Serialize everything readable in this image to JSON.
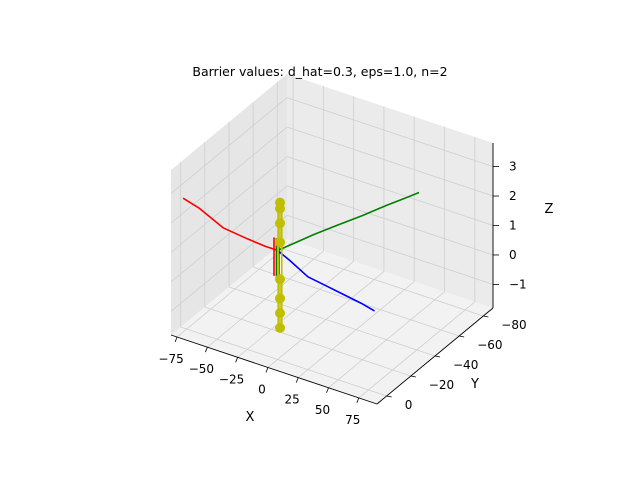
{
  "chart_data": {
    "type": "line3d",
    "title": "Barrier values: d_hat=0.3, eps=1.0, n=2",
    "xlabel": "X",
    "ylabel": "Y",
    "zlabel": "Z",
    "xlim": [
      -80,
      90
    ],
    "ylim": [
      -88,
      8
    ],
    "zlim": [
      -1.8,
      3.8
    ],
    "xticks": [
      -75,
      -50,
      -25,
      0,
      25,
      50,
      75
    ],
    "yticks": [
      0,
      -20,
      -40,
      -60,
      -80
    ],
    "zticks": [
      -1,
      0,
      1,
      2,
      3
    ],
    "grid": true,
    "series": [
      {
        "color": "#ff0000",
        "points": [
          [
            -78,
            0,
            2.6
          ],
          [
            -65,
            0,
            2.45
          ],
          [
            -45,
            0,
            2.05
          ],
          [
            -25,
            0,
            1.95
          ],
          [
            -10,
            0,
            1.9
          ],
          [
            -1,
            0,
            1.9
          ]
        ]
      },
      {
        "color": "#ff0000",
        "points": [
          [
            -3,
            0,
            1.0
          ],
          [
            -3,
            0,
            2.3
          ]
        ]
      },
      {
        "color": "#008000",
        "points": [
          [
            0,
            0,
            1.9
          ],
          [
            5,
            -10,
            1.9
          ],
          [
            10,
            -20,
            1.9
          ],
          [
            17,
            -32,
            1.9
          ],
          [
            25,
            -45,
            1.9
          ],
          [
            32,
            -58,
            1.9
          ],
          [
            38,
            -68,
            1.9
          ],
          [
            42,
            -75,
            1.9
          ]
        ]
      },
      {
        "color": "#008000",
        "points": [
          [
            -1,
            0,
            1.0
          ],
          [
            -1,
            0,
            2.3
          ]
        ]
      },
      {
        "color": "#0000ff",
        "points": [
          [
            0,
            0,
            1.9
          ],
          [
            10,
            0,
            1.7
          ],
          [
            25,
            0,
            1.35
          ],
          [
            40,
            0,
            1.25
          ],
          [
            55,
            0,
            1.15
          ],
          [
            70,
            0,
            1.05
          ],
          [
            80,
            0,
            0.95
          ]
        ]
      },
      {
        "color": "#0000ff",
        "points": [
          [
            1,
            0,
            1.0
          ],
          [
            1,
            0,
            2.3
          ]
        ]
      },
      {
        "color": "#bfbf00",
        "marker": "o",
        "points": [
          [
            2,
            0,
            3.55
          ],
          [
            2,
            0,
            3.35
          ],
          [
            2,
            0,
            2.85
          ],
          [
            2,
            0,
            2.2
          ]
        ]
      },
      {
        "color": "#bfbf00",
        "marker": "o",
        "points": [
          [
            2,
            0,
            0.95
          ],
          [
            2,
            0,
            0.3
          ],
          [
            2,
            0,
            -0.2
          ],
          [
            2,
            0,
            -0.7
          ]
        ]
      },
      {
        "color": "#bfbf00",
        "points": [
          [
            0.5,
            0,
            3.4
          ],
          [
            0.5,
            0,
            -0.6
          ]
        ]
      },
      {
        "color": "#bfbf00",
        "points": [
          [
            3.5,
            0,
            3.4
          ],
          [
            3.5,
            0,
            -0.6
          ]
        ]
      }
    ]
  }
}
